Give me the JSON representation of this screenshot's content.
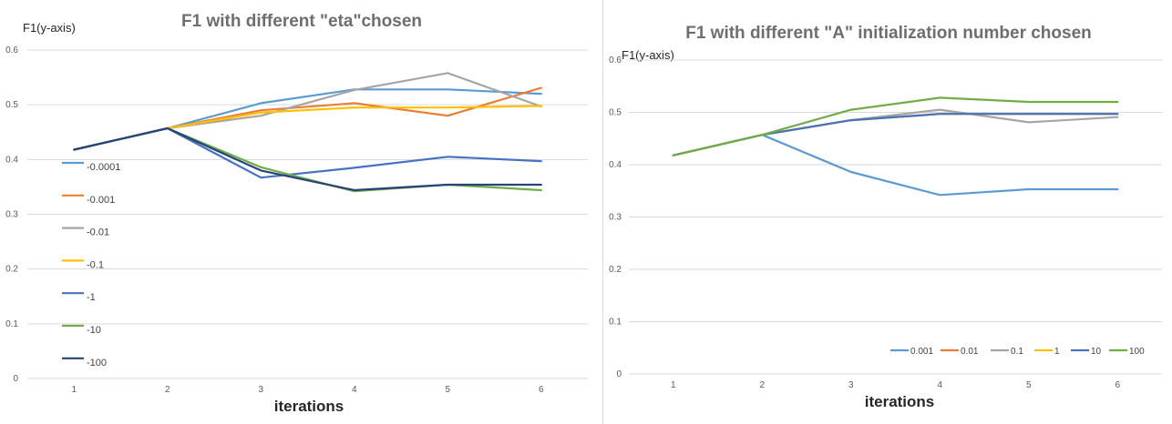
{
  "chart_data": [
    {
      "type": "line",
      "title": "F1 with different \"eta\"chosen",
      "ylabel": "F1(y-axis)",
      "xlabel": "iterations",
      "categories": [
        "1",
        "2",
        "3",
        "4",
        "5",
        "6"
      ],
      "y_ticks": [
        "0",
        "0.1",
        "0.2",
        "0.3",
        "0.4",
        "0.5",
        "0.6"
      ],
      "ylim": [
        0,
        0.6
      ],
      "grid": true,
      "legend_position": "left",
      "series": [
        {
          "name": "-0.0001",
          "color": "#5b9bd5",
          "values": [
            0.418,
            0.457,
            0.503,
            0.528,
            0.528,
            0.52
          ]
        },
        {
          "name": "-0.001",
          "color": "#ed7d31",
          "values": [
            0.418,
            0.457,
            0.49,
            0.503,
            0.48,
            0.531
          ]
        },
        {
          "name": "-0.01",
          "color": "#a5a5a5",
          "values": [
            0.418,
            0.457,
            0.48,
            0.527,
            0.558,
            0.497
          ]
        },
        {
          "name": "-0.1",
          "color": "#ffc000",
          "values": [
            0.418,
            0.457,
            0.486,
            0.495,
            0.495,
            0.498
          ]
        },
        {
          "name": "-1",
          "color": "#4472c4",
          "values": [
            0.418,
            0.457,
            0.367,
            0.385,
            0.405,
            0.397
          ]
        },
        {
          "name": "-10",
          "color": "#70ad47",
          "values": [
            0.418,
            0.457,
            0.386,
            0.342,
            0.354,
            0.344
          ]
        },
        {
          "name": "-100",
          "color": "#264478",
          "values": [
            0.418,
            0.457,
            0.38,
            0.344,
            0.354,
            0.354
          ]
        }
      ]
    },
    {
      "type": "line",
      "title": "F1 with different \"A\" initialization number chosen",
      "ylabel": "F1(y-axis)",
      "xlabel": "iterations",
      "categories": [
        "1",
        "2",
        "3",
        "4",
        "5",
        "6"
      ],
      "y_ticks": [
        "0",
        "0.1",
        "0.2",
        "0.3",
        "0.4",
        "0.5",
        "0.6"
      ],
      "ylim": [
        0,
        0.6
      ],
      "grid": true,
      "legend_position": "bottom-right",
      "series": [
        {
          "name": "0.001",
          "color": "#5b9bd5",
          "values": [
            0.418,
            0.457,
            0.386,
            0.342,
            0.353,
            0.353
          ]
        },
        {
          "name": "0.01",
          "color": "#ed7d31",
          "values": [
            0.418,
            0.457,
            0.485,
            0.497,
            0.497,
            0.497
          ]
        },
        {
          "name": "0.1",
          "color": "#a5a5a5",
          "values": [
            0.418,
            0.457,
            0.485,
            0.505,
            0.481,
            0.491
          ]
        },
        {
          "name": "1",
          "color": "#ffc000",
          "values": [
            0.418,
            0.457,
            0.485,
            0.497,
            0.497,
            0.497
          ]
        },
        {
          "name": "10",
          "color": "#4472c4",
          "values": [
            0.418,
            0.457,
            0.485,
            0.497,
            0.497,
            0.497
          ]
        },
        {
          "name": "100",
          "color": "#70ad47",
          "values": [
            0.418,
            0.457,
            0.505,
            0.528,
            0.52,
            0.52
          ]
        }
      ]
    }
  ]
}
